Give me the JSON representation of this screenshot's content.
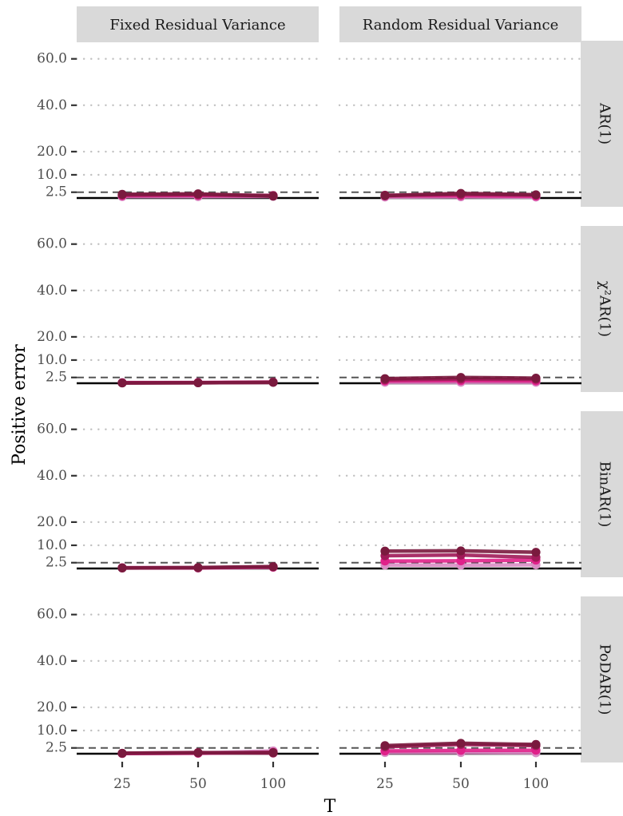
{
  "chart_data": {
    "type": "line",
    "xlabel": "T",
    "ylabel": "Positive error",
    "x_ticks": [
      25,
      50,
      100
    ],
    "y_ticks": [
      60,
      40,
      20,
      10,
      2.5
    ],
    "y_tick_labels": [
      "60.0",
      "40.0",
      "20.0",
      "10.0",
      "2.5"
    ],
    "ylim": [
      0,
      63
    ],
    "reference_line": 2.5,
    "baseline": 0,
    "columns": [
      "Fixed Residual Variance",
      "Random Residual Variance"
    ],
    "rows": [
      "AR(1)",
      "χ²AR(1)",
      "BinAR(1)",
      "PoDAR(1)"
    ],
    "series_colors": [
      "#d98cc4",
      "#e0218a",
      "#a01a58",
      "#7a1a3e"
    ],
    "panels": [
      {
        "column": "Fixed Residual Variance",
        "row": "AR(1)",
        "series": [
          {
            "values": [
              0.6,
              0.6,
              0.7
            ]
          },
          {
            "values": [
              1.0,
              1.1,
              0.9
            ]
          },
          {
            "values": [
              1.3,
              1.4,
              1.1
            ]
          },
          {
            "values": [
              1.6,
              1.8,
              0.8
            ]
          }
        ]
      },
      {
        "column": "Random Residual Variance",
        "row": "AR(1)",
        "series": [
          {
            "values": [
              0.4,
              0.5,
              0.4
            ]
          },
          {
            "values": [
              0.9,
              1.0,
              0.8
            ]
          },
          {
            "values": [
              1.2,
              1.5,
              1.3
            ]
          },
          {
            "values": [
              1.0,
              2.0,
              1.4
            ]
          }
        ]
      },
      {
        "column": "Fixed Residual Variance",
        "row": "χ²AR(1)",
        "series": [
          {
            "values": [
              0.3,
              0.3,
              0.4
            ]
          },
          {
            "values": [
              0.2,
              0.3,
              0.5
            ]
          },
          {
            "values": [
              0.2,
              0.2,
              0.4
            ]
          },
          {
            "values": [
              0.1,
              0.2,
              0.4
            ]
          }
        ]
      },
      {
        "column": "Random Residual Variance",
        "row": "χ²AR(1)",
        "series": [
          {
            "values": [
              0.4,
              0.4,
              0.4
            ]
          },
          {
            "values": [
              1.0,
              1.1,
              1.0
            ]
          },
          {
            "values": [
              1.5,
              1.8,
              1.7
            ]
          },
          {
            "values": [
              2.0,
              2.5,
              2.2
            ]
          }
        ]
      },
      {
        "column": "Fixed Residual Variance",
        "row": "BinAR(1)",
        "series": [
          {
            "values": [
              0.2,
              0.2,
              0.5
            ]
          },
          {
            "values": [
              0.3,
              0.3,
              0.6
            ]
          },
          {
            "values": [
              0.3,
              0.3,
              0.7
            ]
          },
          {
            "values": [
              0.2,
              0.4,
              0.8
            ]
          }
        ]
      },
      {
        "column": "Random Residual Variance",
        "row": "BinAR(1)",
        "series": [
          {
            "values": [
              1.5,
              1.4,
              1.6
            ]
          },
          {
            "values": [
              3.2,
              3.3,
              3.6
            ]
          },
          {
            "values": [
              5.5,
              5.8,
              4.8
            ]
          },
          {
            "values": [
              7.5,
              7.6,
              7.0
            ]
          }
        ]
      },
      {
        "column": "Fixed Residual Variance",
        "row": "PoDAR(1)",
        "series": [
          {
            "values": [
              0.1,
              0.3,
              1.2
            ]
          },
          {
            "values": [
              0.1,
              0.2,
              0.6
            ]
          },
          {
            "values": [
              0.2,
              0.5,
              0.3
            ]
          },
          {
            "values": [
              0.2,
              0.4,
              0.5
            ]
          }
        ]
      },
      {
        "column": "Random Residual Variance",
        "row": "PoDAR(1)",
        "series": [
          {
            "values": [
              0.5,
              0.5,
              0.4
            ]
          },
          {
            "values": [
              1.2,
              1.4,
              1.5
            ]
          },
          {
            "values": [
              3.0,
              4.0,
              3.5
            ]
          },
          {
            "values": [
              3.5,
              4.5,
              4.0
            ]
          }
        ]
      }
    ]
  }
}
